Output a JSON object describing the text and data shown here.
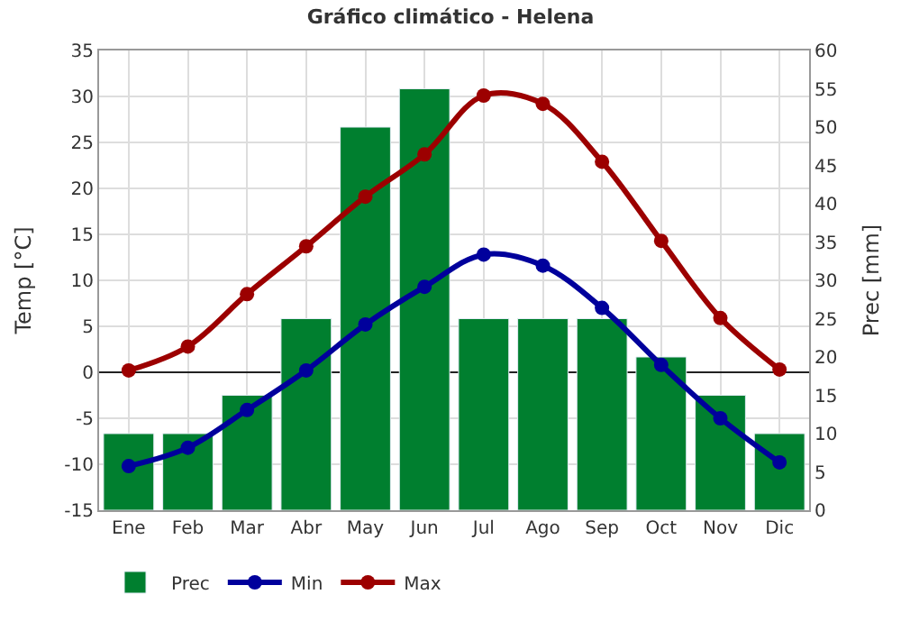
{
  "chart_data": {
    "type": "bar",
    "title": "Gráfico climático - Helena",
    "categories": [
      "Ene",
      "Feb",
      "Mar",
      "Abr",
      "May",
      "Jun",
      "Jul",
      "Ago",
      "Sep",
      "Oct",
      "Nov",
      "Dic"
    ],
    "ylabel": "Temp [°C]",
    "y2label": "Prec [mm]",
    "ylim": [
      -15,
      35
    ],
    "yticks": [
      -15,
      -10,
      -5,
      0,
      5,
      10,
      15,
      20,
      25,
      30,
      35
    ],
    "y2lim": [
      0,
      60
    ],
    "y2ticks": [
      0,
      5,
      10,
      15,
      20,
      25,
      30,
      35,
      40,
      45,
      50,
      55,
      60
    ],
    "grid": true,
    "legend": "bottom",
    "marker": "circle",
    "series": [
      {
        "name": "Prec",
        "axis": "y2",
        "color": "#007f2f",
        "values": [
          10,
          10,
          15,
          25,
          50,
          55,
          25,
          25,
          25,
          20,
          15,
          10
        ]
      },
      {
        "name": "Min",
        "type": "line",
        "color": "#00009c",
        "values": [
          -10.2,
          -8.2,
          -4.1,
          0.2,
          5.2,
          9.3,
          12.8,
          11.6,
          7.0,
          0.8,
          -5.0,
          -9.8
        ]
      },
      {
        "name": "Max",
        "type": "line",
        "color": "#9c0000",
        "values": [
          0.2,
          2.8,
          8.5,
          13.7,
          19.1,
          23.7,
          30.1,
          29.2,
          22.9,
          14.3,
          5.9,
          0.3
        ]
      }
    ]
  }
}
